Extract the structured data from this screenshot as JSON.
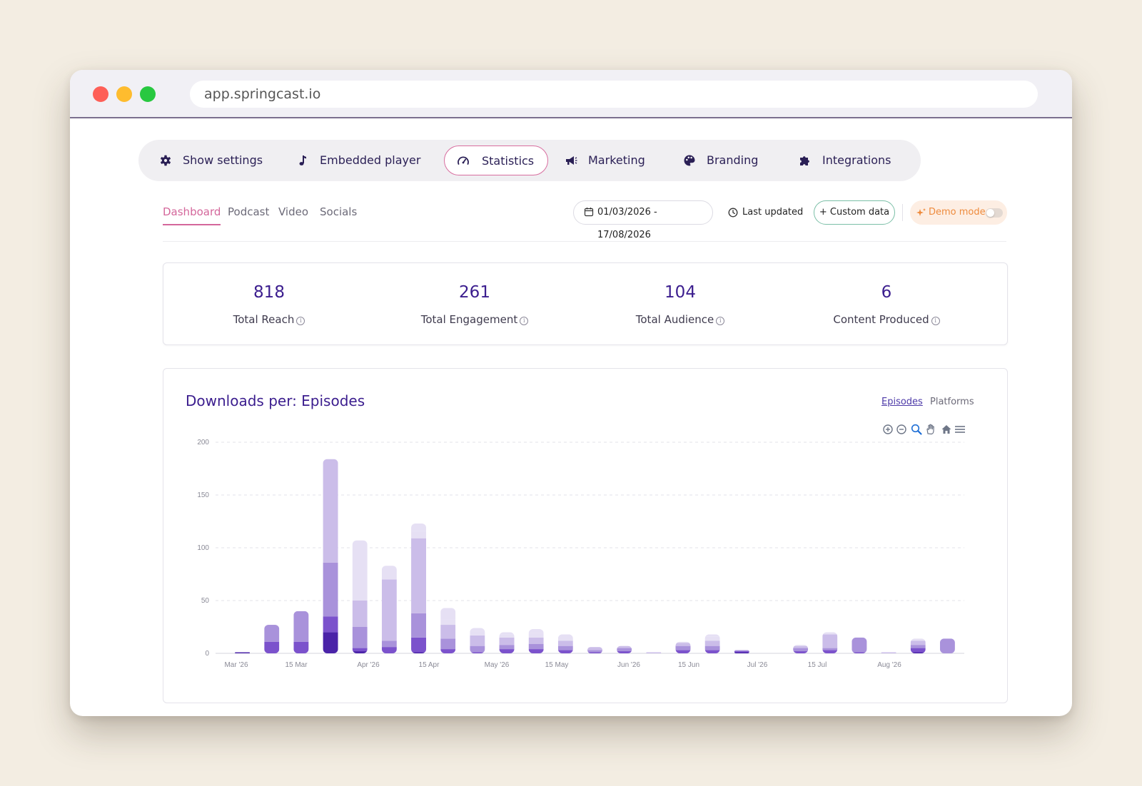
{
  "browser": {
    "url": "app.springcast.io"
  },
  "nav": {
    "items": [
      {
        "label": "Show settings",
        "icon": "gear-icon",
        "active": false
      },
      {
        "label": "Embedded player",
        "icon": "music-note-icon",
        "active": false
      },
      {
        "label": "Statistics",
        "icon": "gauge-icon",
        "active": true
      },
      {
        "label": "Marketing",
        "icon": "megaphone-icon",
        "active": false
      },
      {
        "label": "Branding",
        "icon": "palette-icon",
        "active": false
      },
      {
        "label": "Integrations",
        "icon": "puzzle-icon",
        "active": false
      }
    ]
  },
  "subtabs": [
    {
      "label": "Dashboard",
      "active": true
    },
    {
      "label": "Podcast",
      "active": false
    },
    {
      "label": "Video",
      "active": false
    },
    {
      "label": "Socials",
      "active": false
    }
  ],
  "controls": {
    "date_range": "01/03/2026 - 17/08/2026",
    "last_updated": "Last updated",
    "custom_data": "+ Custom data",
    "demo_mode": "Demo mode",
    "demo_mode_on": false
  },
  "stats": [
    {
      "value": "818",
      "label": "Total Reach"
    },
    {
      "value": "261",
      "label": "Total Engagement"
    },
    {
      "value": "104",
      "label": "Total Audience"
    },
    {
      "value": "6",
      "label": "Content Produced"
    }
  ],
  "chart": {
    "title": "Downloads per: Episodes",
    "tabs": [
      {
        "label": "Episodes",
        "active": true
      },
      {
        "label": "Platforms",
        "active": false
      }
    ],
    "toolbar": [
      "zoom-in-icon",
      "zoom-out-icon",
      "zoom-select-icon",
      "pan-hand-icon",
      "reset-home-icon",
      "menu-icon"
    ]
  },
  "chart_data": {
    "type": "bar",
    "stacked": true,
    "ylim": [
      0,
      200
    ],
    "yticks": [
      0,
      50,
      100,
      150,
      200
    ],
    "grid": true,
    "x_labels": [
      "Mar '26",
      "15 Mar",
      "Apr '26",
      "15 Apr",
      "May '26",
      "15 May",
      "Jun '26",
      "15 Jun",
      "Jul '26",
      "15 Jul",
      "Aug '26"
    ],
    "series_colors": [
      "#4a23a8",
      "#7b52cc",
      "#a992db",
      "#cbbde9",
      "#e6e0f4"
    ],
    "bars": [
      [
        1,
        0,
        0,
        0,
        0
      ],
      [
        0,
        11,
        16,
        0,
        0
      ],
      [
        0,
        11,
        29,
        0,
        0
      ],
      [
        20,
        15,
        51,
        98,
        0
      ],
      [
        2,
        3,
        20,
        25,
        57
      ],
      [
        0,
        6,
        6,
        58,
        5,
        8
      ],
      [
        1,
        14,
        23,
        71,
        7,
        7
      ],
      [
        0,
        4,
        10,
        13,
        5,
        11
      ],
      [
        0,
        1,
        6,
        10,
        4,
        3
      ],
      [
        0,
        4,
        4,
        7,
        3,
        2
      ],
      [
        0,
        4,
        5,
        6,
        4,
        4
      ],
      [
        0,
        3,
        4,
        5,
        6
      ],
      [
        0,
        1,
        2,
        3
      ],
      [
        0,
        2,
        3,
        2
      ],
      [
        0,
        0,
        0,
        1
      ],
      [
        0,
        3,
        4,
        3,
        1
      ],
      [
        0,
        3,
        4,
        5,
        4,
        2
      ],
      [
        1,
        1,
        1
      ],
      [
        0,
        0,
        0,
        0
      ],
      [
        0,
        2,
        3,
        2,
        1
      ],
      [
        0,
        3,
        2,
        13,
        2
      ],
      [
        0,
        1,
        14
      ],
      [
        0,
        0,
        0,
        1
      ],
      [
        1,
        4,
        3,
        4,
        2
      ],
      [
        0,
        0,
        14
      ]
    ]
  }
}
